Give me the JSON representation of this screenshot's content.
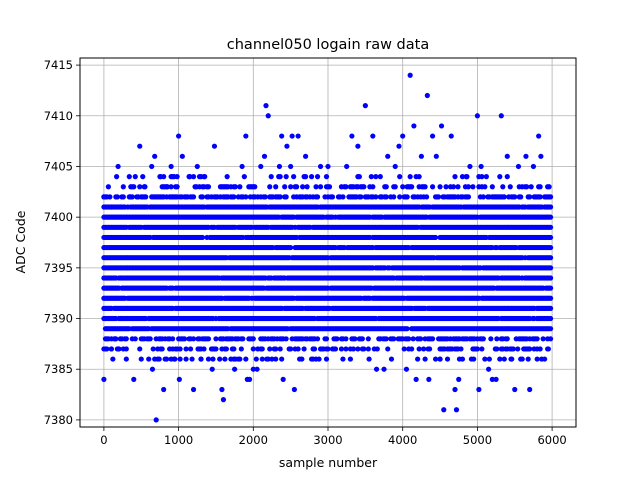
{
  "chart_data": {
    "type": "scatter",
    "title": "channel050 logain raw data",
    "xlabel": "sample number",
    "ylabel": "ADC Code",
    "xlim": [
      -320,
      6320
    ],
    "ylim": [
      7379.3,
      7415.7
    ],
    "xticks": [
      0,
      1000,
      2000,
      3000,
      4000,
      5000,
      6000
    ],
    "yticks": [
      7380,
      7385,
      7390,
      7395,
      7400,
      7405,
      7410,
      7415
    ],
    "xtick_labels": [
      "0",
      "1000",
      "2000",
      "3000",
      "4000",
      "5000",
      "6000"
    ],
    "ytick_labels": [
      "7380",
      "7385",
      "7390",
      "7395",
      "7400",
      "7405",
      "7410",
      "7415"
    ],
    "grid": true,
    "marker_color": "#0000ff",
    "n_samples": 6000,
    "x_step": 20,
    "bands": {
      "core_range": [
        7389,
        7401
      ],
      "mid_range": [
        7386,
        7404
      ],
      "spacing_note": "integer ADC levels, dense between 7389 and 7401"
    },
    "series": [
      {
        "name": "",
        "points": [
          [
            0,
            7384
          ],
          [
            0,
            7402
          ],
          [
            100,
            7387
          ],
          [
            100,
            7401
          ],
          [
            150,
            7388
          ],
          [
            170,
            7404
          ],
          [
            190,
            7405
          ],
          [
            200,
            7387
          ],
          [
            300,
            7387
          ],
          [
            350,
            7402
          ],
          [
            400,
            7384
          ],
          [
            480,
            7407
          ],
          [
            500,
            7386
          ],
          [
            550,
            7403
          ],
          [
            600,
            7386
          ],
          [
            640,
            7405
          ],
          [
            650,
            7385
          ],
          [
            680,
            7406
          ],
          [
            700,
            7380
          ],
          [
            720,
            7386
          ],
          [
            750,
            7404
          ],
          [
            800,
            7383
          ],
          [
            850,
            7403
          ],
          [
            900,
            7405
          ],
          [
            950,
            7386
          ],
          [
            1000,
            7408
          ],
          [
            1010,
            7384
          ],
          [
            1050,
            7406
          ],
          [
            1100,
            7386
          ],
          [
            1150,
            7404
          ],
          [
            1200,
            7383
          ],
          [
            1250,
            7405
          ],
          [
            1300,
            7386
          ],
          [
            1350,
            7404
          ],
          [
            1400,
            7386
          ],
          [
            1450,
            7385
          ],
          [
            1480,
            7407
          ],
          [
            1550,
            7386
          ],
          [
            1580,
            7383
          ],
          [
            1600,
            7382
          ],
          [
            1650,
            7404
          ],
          [
            1700,
            7386
          ],
          [
            1750,
            7385
          ],
          [
            1800,
            7386
          ],
          [
            1850,
            7405
          ],
          [
            1900,
            7408
          ],
          [
            1920,
            7384
          ],
          [
            1950,
            7384
          ],
          [
            2000,
            7385
          ],
          [
            2050,
            7385
          ],
          [
            2100,
            7405
          ],
          [
            2150,
            7406
          ],
          [
            2170,
            7411
          ],
          [
            2200,
            7410
          ],
          [
            2250,
            7386
          ],
          [
            2300,
            7386
          ],
          [
            2350,
            7405
          ],
          [
            2380,
            7408
          ],
          [
            2400,
            7384
          ],
          [
            2450,
            7407
          ],
          [
            2500,
            7405
          ],
          [
            2520,
            7408
          ],
          [
            2550,
            7383
          ],
          [
            2600,
            7408
          ],
          [
            2650,
            7386
          ],
          [
            2700,
            7406
          ],
          [
            2800,
            7386
          ],
          [
            2900,
            7405
          ],
          [
            3000,
            7405
          ],
          [
            3100,
            7387
          ],
          [
            3200,
            7386
          ],
          [
            3250,
            7405
          ],
          [
            3300,
            7386
          ],
          [
            3320,
            7408
          ],
          [
            3400,
            7407
          ],
          [
            3480,
            7387
          ],
          [
            3500,
            7411
          ],
          [
            3550,
            7386
          ],
          [
            3600,
            7408
          ],
          [
            3650,
            7385
          ],
          [
            3700,
            7404
          ],
          [
            3750,
            7385
          ],
          [
            3800,
            7406
          ],
          [
            3850,
            7386
          ],
          [
            3900,
            7405
          ],
          [
            3950,
            7407
          ],
          [
            4000,
            7408
          ],
          [
            4050,
            7385
          ],
          [
            4100,
            7414
          ],
          [
            4150,
            7409
          ],
          [
            4180,
            7384
          ],
          [
            4250,
            7406
          ],
          [
            4300,
            7386
          ],
          [
            4330,
            7412
          ],
          [
            4350,
            7384
          ],
          [
            4400,
            7408
          ],
          [
            4450,
            7406
          ],
          [
            4500,
            7386
          ],
          [
            4520,
            7409
          ],
          [
            4550,
            7381
          ],
          [
            4600,
            7386
          ],
          [
            4650,
            7408
          ],
          [
            4700,
            7383
          ],
          [
            4720,
            7381
          ],
          [
            4750,
            7384
          ],
          [
            4800,
            7386
          ],
          [
            4850,
            7404
          ],
          [
            4900,
            7405
          ],
          [
            4950,
            7386
          ],
          [
            5000,
            7410
          ],
          [
            5020,
            7383
          ],
          [
            5050,
            7405
          ],
          [
            5100,
            7386
          ],
          [
            5150,
            7385
          ],
          [
            5200,
            7384
          ],
          [
            5250,
            7384
          ],
          [
            5300,
            7386
          ],
          [
            5320,
            7410
          ],
          [
            5400,
            7406
          ],
          [
            5450,
            7386
          ],
          [
            5500,
            7383
          ],
          [
            5550,
            7405
          ],
          [
            5600,
            7386
          ],
          [
            5650,
            7406
          ],
          [
            5700,
            7383
          ],
          [
            5750,
            7405
          ],
          [
            5800,
            7386
          ],
          [
            5820,
            7408
          ],
          [
            5850,
            7406
          ],
          [
            5900,
            7386
          ],
          [
            5950,
            7387
          ]
        ]
      }
    ]
  }
}
